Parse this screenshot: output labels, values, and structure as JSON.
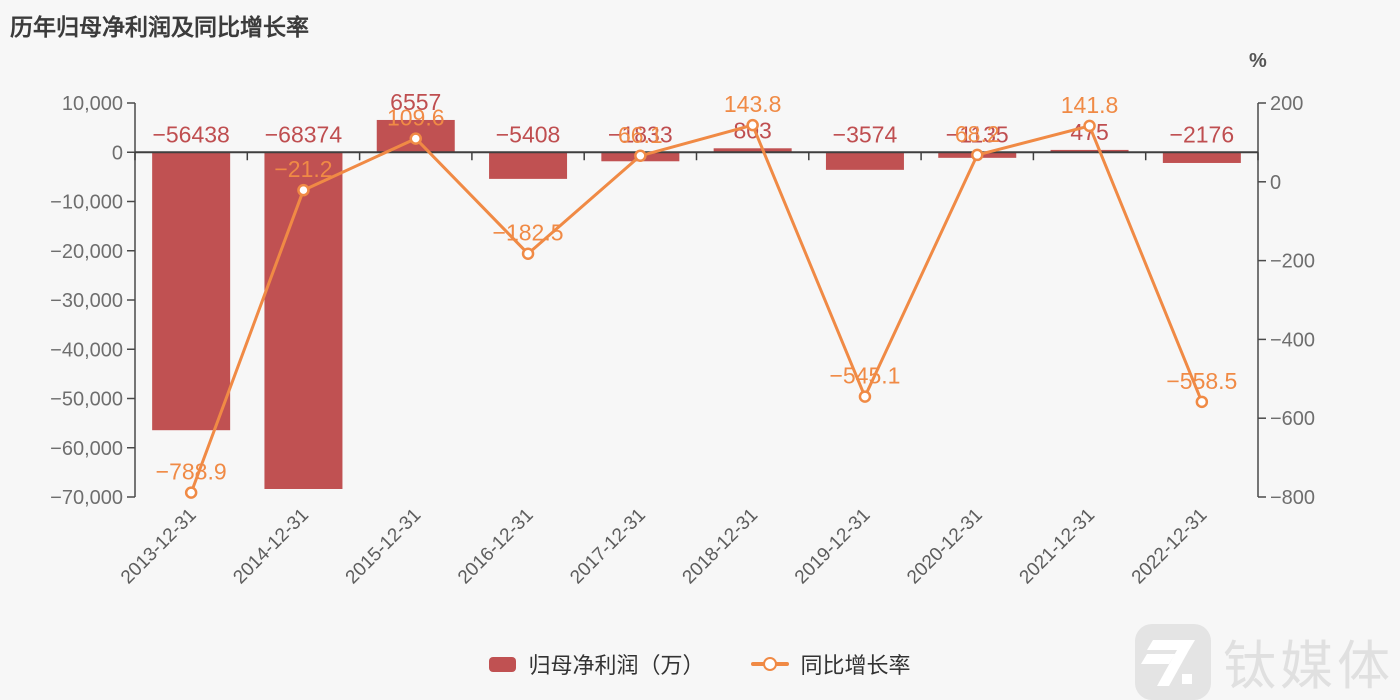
{
  "title": "历年归母净利润及同比增长率",
  "legend": [
    {
      "label": "归母净利润（万）",
      "type": "bar",
      "color": "#c05152"
    },
    {
      "label": "同比增长率",
      "type": "line",
      "color": "#f08a45"
    }
  ],
  "watermark": {
    "text": "钛媒体"
  },
  "chart_data": {
    "type": "bar+line",
    "categories": [
      "2013-12-31",
      "2014-12-31",
      "2015-12-31",
      "2016-12-31",
      "2017-12-31",
      "2018-12-31",
      "2019-12-31",
      "2020-12-31",
      "2021-12-31",
      "2022-12-31"
    ],
    "series": [
      {
        "name": "归母净利润（万）",
        "type": "bar",
        "yaxis": "left",
        "color": "#c05152",
        "values": [
          -56438,
          -68374,
          6557,
          -5408,
          -1833,
          803,
          -3574,
          -1135,
          475,
          -2176
        ],
        "labels": [
          "−56438",
          "−68374",
          "6557",
          "−5408",
          "−1833",
          "803",
          "−3574",
          "−1135",
          "475",
          "−2176"
        ]
      },
      {
        "name": "同比增长率",
        "type": "line",
        "yaxis": "right",
        "color": "#f08a45",
        "values": [
          -788.9,
          -21.2,
          109.6,
          -182.5,
          66.1,
          143.8,
          -545.1,
          68.2,
          141.8,
          -558.5
        ],
        "labels": [
          "−788.9",
          "−21.2",
          "109.6",
          "−182.5",
          "66.1",
          "143.8",
          "−545.1",
          "68.2",
          "141.8",
          "−558.5"
        ]
      }
    ],
    "left_axis": {
      "title": "",
      "min": -70000,
      "max": 10000,
      "tick_step": 10000,
      "tick_labels": [
        "10,000",
        "0",
        "−10,000",
        "−20,000",
        "−30,000",
        "−40,000",
        "−50,000",
        "−60,000",
        "−70,000"
      ]
    },
    "right_axis": {
      "title": "%",
      "min": -800,
      "max": 200,
      "tick_step": 200,
      "tick_labels": [
        "200",
        "0",
        "−200",
        "−400",
        "−600",
        "−800"
      ]
    },
    "grid": false,
    "legend_position": "bottom"
  }
}
